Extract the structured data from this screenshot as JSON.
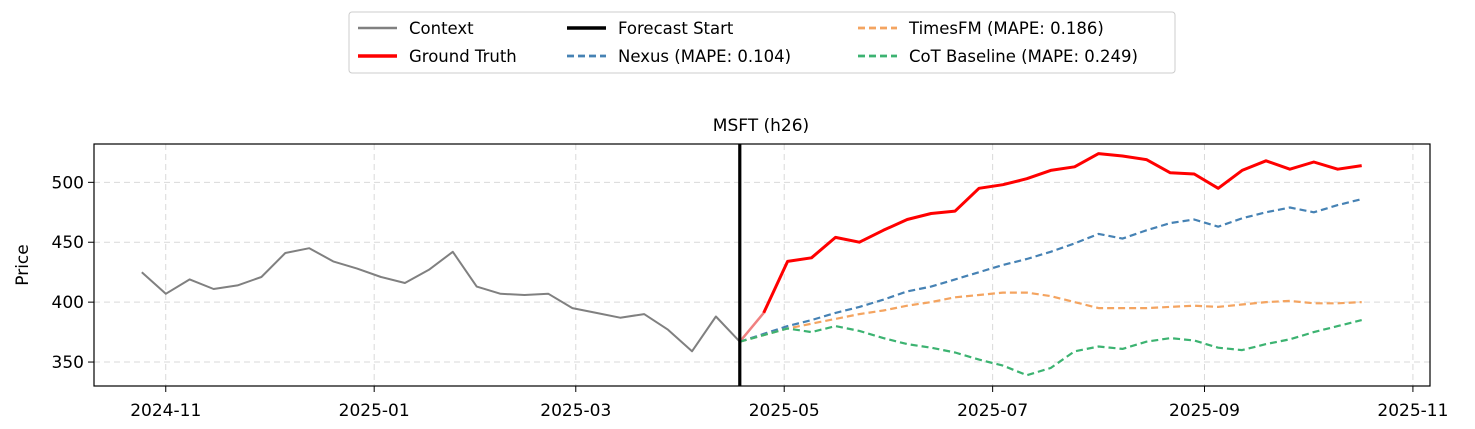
{
  "chart_data": {
    "type": "line",
    "title": "MSFT (h26)",
    "xlabel": "",
    "ylabel": "Price",
    "x_ticks": [
      "2024-11",
      "2025-01",
      "2025-03",
      "2025-05",
      "2025-07",
      "2025-09",
      "2025-11"
    ],
    "y_ticks": [
      350,
      400,
      450,
      500
    ],
    "xlim": [
      "2024-10-11",
      "2025-11-06"
    ],
    "ylim": [
      330,
      532
    ],
    "grid": true,
    "legend_position": "top-center (outside, above plot)",
    "forecast_start": "2025-04-18",
    "legend": [
      {
        "label": "Context",
        "color": "#808080",
        "dash": "solid",
        "width": 2
      },
      {
        "label": "Ground Truth",
        "color": "#ff0000",
        "dash": "solid",
        "width": 3
      },
      {
        "label": "Forecast Start",
        "color": "#000000",
        "dash": "solid",
        "width": 3
      },
      {
        "label": "Nexus (MAPE: 0.104)",
        "color": "#4682b4",
        "dash": "dashed",
        "width": 2.2
      },
      {
        "label": "TimesFM (MAPE: 0.186)",
        "color": "#f4a460",
        "dash": "dashed",
        "width": 2.2
      },
      {
        "label": "CoT Baseline (MAPE: 0.249)",
        "color": "#3cb371",
        "dash": "dashed",
        "width": 2.2
      }
    ],
    "series": [
      {
        "name": "Context",
        "color": "#808080",
        "x": [
          "2024-10-25",
          "2024-11-01",
          "2024-11-08",
          "2024-11-15",
          "2024-11-22",
          "2024-11-29",
          "2024-12-06",
          "2024-12-13",
          "2024-12-20",
          "2024-12-27",
          "2025-01-03",
          "2025-01-10",
          "2025-01-17",
          "2025-01-24",
          "2025-01-31",
          "2025-02-07",
          "2025-02-14",
          "2025-02-21",
          "2025-02-28",
          "2025-03-07",
          "2025-03-14",
          "2025-03-21",
          "2025-03-28",
          "2025-04-04",
          "2025-04-11",
          "2025-04-18"
        ],
        "values": [
          425,
          407,
          419,
          411,
          414,
          421,
          441,
          445,
          434,
          428,
          421,
          416,
          427,
          442,
          413,
          407,
          406,
          407,
          395,
          391,
          387,
          390,
          377,
          359,
          388,
          367
        ]
      },
      {
        "name": "Ground Truth (transition)",
        "color": "#f08080",
        "x": [
          "2025-04-18",
          "2025-04-25"
        ],
        "values": [
          367,
          391
        ]
      },
      {
        "name": "Ground Truth",
        "color": "#ff0000",
        "x": [
          "2025-04-25",
          "2025-05-02",
          "2025-05-09",
          "2025-05-16",
          "2025-05-23",
          "2025-05-30",
          "2025-06-06",
          "2025-06-13",
          "2025-06-20",
          "2025-06-27",
          "2025-07-04",
          "2025-07-11",
          "2025-07-18",
          "2025-07-25",
          "2025-08-01",
          "2025-08-08",
          "2025-08-15",
          "2025-08-22",
          "2025-08-29",
          "2025-09-05",
          "2025-09-12",
          "2025-09-19",
          "2025-09-26",
          "2025-10-03",
          "2025-10-10",
          "2025-10-17"
        ],
        "values": [
          391,
          434,
          437,
          454,
          450,
          460,
          469,
          474,
          476,
          495,
          498,
          503,
          510,
          513,
          524,
          522,
          519,
          508,
          507,
          495,
          510,
          518,
          511,
          517,
          511,
          514
        ]
      },
      {
        "name": "Nexus (MAPE: 0.104)",
        "color": "#4682b4",
        "x": [
          "2025-04-18",
          "2025-05-02",
          "2025-05-09",
          "2025-05-16",
          "2025-05-23",
          "2025-05-30",
          "2025-06-06",
          "2025-06-13",
          "2025-06-20",
          "2025-06-27",
          "2025-07-04",
          "2025-07-11",
          "2025-07-18",
          "2025-07-25",
          "2025-08-01",
          "2025-08-08",
          "2025-08-15",
          "2025-08-22",
          "2025-08-29",
          "2025-09-05",
          "2025-09-12",
          "2025-09-19",
          "2025-09-26",
          "2025-10-03",
          "2025-10-10",
          "2025-10-17"
        ],
        "values": [
          367,
          380,
          385,
          391,
          396,
          402,
          409,
          413,
          419,
          425,
          431,
          436,
          442,
          449,
          457,
          453,
          460,
          466,
          469,
          463,
          470,
          475,
          479,
          475,
          481,
          486
        ]
      },
      {
        "name": "TimesFM (MAPE: 0.186)",
        "color": "#f4a460",
        "x": [
          "2025-04-18",
          "2025-05-02",
          "2025-05-09",
          "2025-05-16",
          "2025-05-23",
          "2025-05-30",
          "2025-06-06",
          "2025-06-13",
          "2025-06-20",
          "2025-06-27",
          "2025-07-04",
          "2025-07-11",
          "2025-07-18",
          "2025-07-25",
          "2025-08-01",
          "2025-08-08",
          "2025-08-15",
          "2025-08-22",
          "2025-08-29",
          "2025-09-05",
          "2025-09-12",
          "2025-09-19",
          "2025-09-26",
          "2025-10-03",
          "2025-10-10",
          "2025-10-17"
        ],
        "values": [
          367,
          378,
          382,
          386,
          390,
          393,
          397,
          400,
          404,
          406,
          408,
          408,
          405,
          400,
          395,
          395,
          395,
          396,
          397,
          396,
          398,
          400,
          401,
          399,
          399,
          400
        ]
      },
      {
        "name": "CoT Baseline (MAPE: 0.249)",
        "color": "#3cb371",
        "x": [
          "2025-04-18",
          "2025-05-02",
          "2025-05-09",
          "2025-05-16",
          "2025-05-23",
          "2025-05-30",
          "2025-06-06",
          "2025-06-13",
          "2025-06-20",
          "2025-06-27",
          "2025-07-04",
          "2025-07-11",
          "2025-07-18",
          "2025-07-25",
          "2025-08-01",
          "2025-08-08",
          "2025-08-15",
          "2025-08-22",
          "2025-08-29",
          "2025-09-05",
          "2025-09-12",
          "2025-09-19",
          "2025-09-26",
          "2025-10-03",
          "2025-10-10",
          "2025-10-17"
        ],
        "values": [
          367,
          378,
          375,
          380,
          376,
          370,
          365,
          362,
          358,
          352,
          347,
          339,
          345,
          359,
          363,
          361,
          367,
          370,
          368,
          362,
          360,
          365,
          369,
          375,
          380,
          385
        ]
      }
    ]
  }
}
